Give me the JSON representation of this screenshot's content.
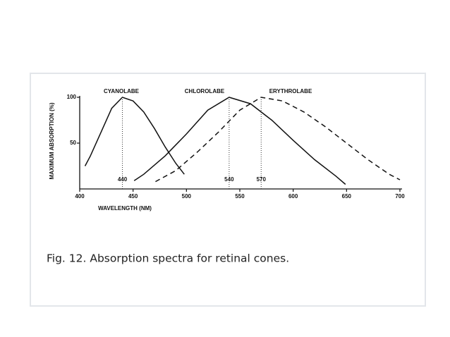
{
  "chart_data": {
    "type": "line",
    "caption": "Fig. 12. Absorption spectra for retinal cones.",
    "xlabel": "WAVELENGTH (NM)",
    "ylabel": "MAXIMUM ABSORPTION (%)",
    "xlim": [
      400,
      700
    ],
    "xticks": [
      400,
      450,
      500,
      550,
      600,
      650,
      700
    ],
    "ylim": [
      0,
      100
    ],
    "yticks": [
      50,
      100
    ],
    "peaks": [
      440,
      540,
      570
    ],
    "series": [
      {
        "name": "CYANOLABE",
        "color": "#111111",
        "style": "solid",
        "x": [
          405,
          410,
          420,
          430,
          440,
          450,
          460,
          470,
          480,
          490,
          498
        ],
        "values": [
          25,
          36,
          62,
          88,
          100,
          96,
          84,
          66,
          46,
          28,
          16
        ]
      },
      {
        "name": "CHLOROLABE",
        "color": "#111111",
        "style": "solid",
        "x": [
          451,
          460,
          480,
          500,
          520,
          540,
          560,
          580,
          600,
          620,
          640,
          649
        ],
        "values": [
          9,
          16,
          36,
          60,
          86,
          100,
          93,
          75,
          53,
          32,
          14,
          5
        ]
      },
      {
        "name": "ERYTHROLABE",
        "color": "#111111",
        "style": "dashed",
        "x": [
          471,
          490,
          510,
          530,
          550,
          570,
          590,
          610,
          630,
          650,
          670,
          690,
          700
        ],
        "values": [
          8,
          20,
          40,
          62,
          86,
          100,
          96,
          84,
          68,
          50,
          32,
          16,
          10
        ]
      }
    ]
  }
}
